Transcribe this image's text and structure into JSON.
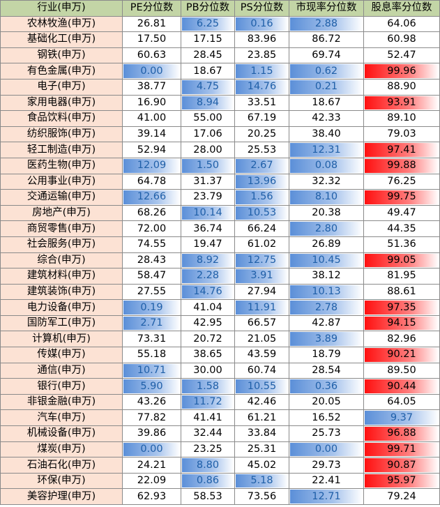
{
  "headers": [
    "行业(申万)",
    "PE分位数",
    "PB分位数",
    "PS分位数",
    "市现率分位数",
    "股息率分位数"
  ],
  "colors": {
    "header_bg": "#c3d5a6",
    "name_bg": "#fce2d4",
    "low_bar": "#5b8fd8",
    "high_bar": "#ff1010"
  },
  "rows": [
    {
      "name": "农林牧渔(申万)",
      "values": [
        "26.81",
        "6.25",
        "0.16",
        "2.88",
        "64.06"
      ],
      "bars": [
        null,
        "blue",
        "blue",
        "blue",
        null
      ]
    },
    {
      "name": "基础化工(申万)",
      "values": [
        "17.50",
        "17.15",
        "83.96",
        "86.72",
        "60.98"
      ],
      "bars": [
        null,
        null,
        null,
        null,
        null
      ]
    },
    {
      "name": "钢铁(申万)",
      "values": [
        "60.63",
        "28.45",
        "23.85",
        "69.74",
        "52.47"
      ],
      "bars": [
        null,
        null,
        null,
        null,
        null
      ]
    },
    {
      "name": "有色金属(申万)",
      "values": [
        "0.00",
        "18.67",
        "1.15",
        "0.62",
        "99.96"
      ],
      "bars": [
        "blue",
        null,
        "blue",
        "blue",
        "red"
      ]
    },
    {
      "name": "电子(申万)",
      "values": [
        "38.77",
        "4.75",
        "14.76",
        "0.21",
        "88.90"
      ],
      "bars": [
        null,
        "blue",
        "blue",
        "blue",
        null
      ]
    },
    {
      "name": "家用电器(申万)",
      "values": [
        "16.90",
        "8.94",
        "33.51",
        "18.67",
        "93.91"
      ],
      "bars": [
        null,
        "blue",
        null,
        null,
        "red"
      ]
    },
    {
      "name": "食品饮料(申万)",
      "values": [
        "41.00",
        "55.00",
        "67.19",
        "42.33",
        "89.10"
      ],
      "bars": [
        null,
        null,
        null,
        null,
        null
      ]
    },
    {
      "name": "纺织服饰(申万)",
      "values": [
        "39.14",
        "17.06",
        "20.25",
        "38.40",
        "79.03"
      ],
      "bars": [
        null,
        null,
        null,
        null,
        null
      ]
    },
    {
      "name": "轻工制造(申万)",
      "values": [
        "52.94",
        "28.00",
        "25.53",
        "12.31",
        "97.41"
      ],
      "bars": [
        null,
        null,
        null,
        "blue",
        "red"
      ]
    },
    {
      "name": "医药生物(申万)",
      "values": [
        "12.09",
        "1.50",
        "2.67",
        "0.08",
        "99.88"
      ],
      "bars": [
        "blue",
        "blue",
        "blue",
        "blue",
        "red"
      ]
    },
    {
      "name": "公用事业(申万)",
      "values": [
        "64.78",
        "31.37",
        "13.96",
        "32.32",
        "76.25"
      ],
      "bars": [
        null,
        null,
        "blue",
        null,
        null
      ]
    },
    {
      "name": "交通运输(申万)",
      "values": [
        "12.66",
        "23.79",
        "1.56",
        "8.10",
        "99.75"
      ],
      "bars": [
        "blue",
        null,
        "blue",
        "blue",
        "red"
      ]
    },
    {
      "name": "房地产(申万)",
      "values": [
        "68.26",
        "10.14",
        "10.53",
        "20.38",
        "49.47"
      ],
      "bars": [
        null,
        "blue",
        "blue",
        null,
        null
      ]
    },
    {
      "name": "商贸零售(申万)",
      "values": [
        "72.00",
        "36.74",
        "66.24",
        "2.80",
        "44.35"
      ],
      "bars": [
        null,
        null,
        null,
        "blue",
        null
      ]
    },
    {
      "name": "社会服务(申万)",
      "values": [
        "74.55",
        "19.47",
        "61.02",
        "26.89",
        "51.36"
      ],
      "bars": [
        null,
        null,
        null,
        null,
        null
      ]
    },
    {
      "name": "综合(申万)",
      "values": [
        "28.43",
        "8.92",
        "12.75",
        "10.45",
        "99.05"
      ],
      "bars": [
        null,
        "blue",
        "blue",
        "blue",
        "red"
      ]
    },
    {
      "name": "建筑材料(申万)",
      "values": [
        "58.47",
        "2.28",
        "3.91",
        "38.12",
        "81.95"
      ],
      "bars": [
        null,
        "blue",
        "blue",
        null,
        null
      ]
    },
    {
      "name": "建筑装饰(申万)",
      "values": [
        "27.55",
        "14.76",
        "27.94",
        "10.13",
        "88.61"
      ],
      "bars": [
        null,
        "blue",
        null,
        "blue",
        null
      ]
    },
    {
      "name": "电力设备(申万)",
      "values": [
        "0.19",
        "41.04",
        "11.91",
        "2.78",
        "97.35"
      ],
      "bars": [
        "blue",
        null,
        "blue",
        "blue",
        "red"
      ]
    },
    {
      "name": "国防军工(申万)",
      "values": [
        "2.71",
        "42.95",
        "66.57",
        "42.87",
        "94.15"
      ],
      "bars": [
        "blue",
        null,
        null,
        null,
        "red"
      ]
    },
    {
      "name": "计算机(申万)",
      "values": [
        "73.31",
        "20.72",
        "21.05",
        "3.89",
        "82.96"
      ],
      "bars": [
        null,
        null,
        null,
        "blue",
        null
      ]
    },
    {
      "name": "传媒(申万)",
      "values": [
        "55.18",
        "38.65",
        "43.59",
        "18.79",
        "90.21"
      ],
      "bars": [
        null,
        null,
        null,
        null,
        "red"
      ]
    },
    {
      "name": "通信(申万)",
      "values": [
        "10.71",
        "30.00",
        "60.74",
        "28.54",
        "89.50"
      ],
      "bars": [
        "blue",
        null,
        null,
        null,
        null
      ]
    },
    {
      "name": "银行(申万)",
      "values": [
        "5.90",
        "1.58",
        "10.55",
        "0.36",
        "90.44"
      ],
      "bars": [
        "blue",
        "blue",
        "blue",
        "blue",
        "red"
      ]
    },
    {
      "name": "非银金融(申万)",
      "values": [
        "43.26",
        "11.72",
        "42.46",
        "20.05",
        "64.05"
      ],
      "bars": [
        null,
        "blue",
        null,
        null,
        null
      ]
    },
    {
      "name": "汽车(申万)",
      "values": [
        "77.82",
        "41.41",
        "61.21",
        "16.52",
        "9.37"
      ],
      "bars": [
        null,
        null,
        null,
        null,
        "blue"
      ]
    },
    {
      "name": "机械设备(申万)",
      "values": [
        "39.86",
        "32.44",
        "33.84",
        "25.73",
        "96.88"
      ],
      "bars": [
        null,
        null,
        null,
        null,
        "red"
      ]
    },
    {
      "name": "煤炭(申万)",
      "values": [
        "0.00",
        "23.25",
        "25.31",
        "0.00",
        "99.71"
      ],
      "bars": [
        "blue",
        null,
        null,
        "blue",
        "red"
      ]
    },
    {
      "name": "石油石化(申万)",
      "values": [
        "24.21",
        "8.80",
        "45.02",
        "29.73",
        "90.87"
      ],
      "bars": [
        null,
        "blue",
        null,
        null,
        "red"
      ]
    },
    {
      "name": "环保(申万)",
      "values": [
        "22.09",
        "0.86",
        "5.18",
        "22.41",
        "95.97"
      ],
      "bars": [
        null,
        "blue",
        "blue",
        null,
        "red"
      ]
    },
    {
      "name": "美容护理(申万)",
      "values": [
        "62.93",
        "58.53",
        "73.56",
        "12.71",
        "79.24"
      ],
      "bars": [
        null,
        null,
        null,
        "blue",
        null
      ]
    }
  ]
}
